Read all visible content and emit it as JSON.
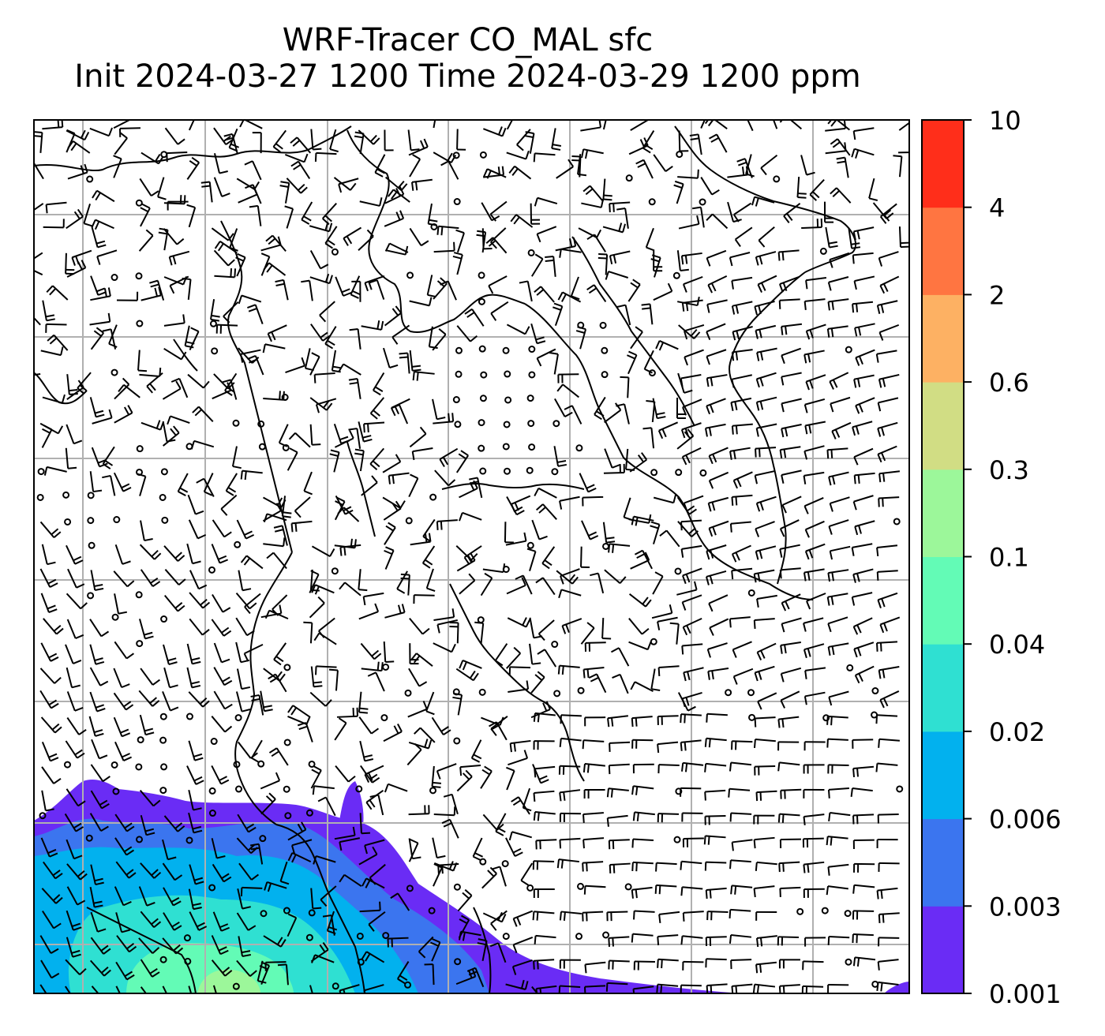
{
  "title": {
    "line1": "WRF-Tracer CO_MAL sfc",
    "line2": "Init 2024-03-27 1200 Time 2024-03-29 1200 ppm"
  },
  "colorbar": {
    "levels": [
      "0.001",
      "0.003",
      "0.006",
      "0.02",
      "0.04",
      "0.1",
      "0.3",
      "0.6",
      "2",
      "4",
      "10"
    ],
    "colors": [
      "#6a2cf5",
      "#3b75ef",
      "#02b1ee",
      "#2fe0d2",
      "#63fbb6",
      "#9cf79a",
      "#d1dd84",
      "#fdb163",
      "#ff7541",
      "#ff2e1a"
    ]
  },
  "colors": {
    "grid": "#b0b0b0",
    "coastline": "#000000",
    "barb": "#000000"
  }
}
